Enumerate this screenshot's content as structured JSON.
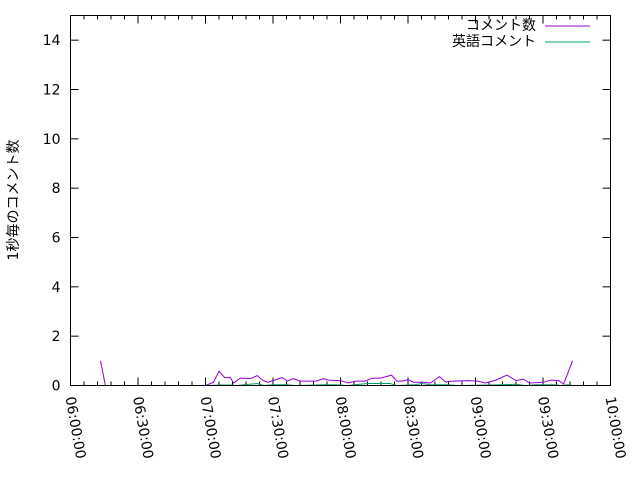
{
  "chart_data": {
    "type": "line",
    "title": "",
    "xlabel": "",
    "ylabel": "1秒毎のコメント数",
    "xlim": [
      "06:00:00",
      "10:00:00"
    ],
    "ylim": [
      0,
      15
    ],
    "x_ticks": [
      "06:00:00",
      "06:30:00",
      "07:00:00",
      "07:30:00",
      "08:00:00",
      "08:30:00",
      "09:00:00",
      "09:30:00",
      "10:00:00"
    ],
    "y_ticks": [
      "0",
      "2",
      "4",
      "6",
      "8",
      "10",
      "12",
      "14"
    ],
    "x_minor_tick_minutes": 6,
    "grid": false,
    "legend_position": "top-right",
    "series": [
      {
        "name": "コメント数",
        "color": "#9400d3",
        "segments": [
          [
            [
              "06:13:20",
              1.0
            ],
            [
              "06:15:30",
              0
            ]
          ],
          [
            [
              "07:00:00",
              0
            ],
            [
              "07:03:30",
              0.13
            ],
            [
              "07:06:00",
              0.58
            ],
            [
              "07:08:30",
              0.32
            ],
            [
              "07:11:00",
              0.32
            ],
            [
              "07:12:30",
              0.1
            ],
            [
              "07:15:30",
              0.3
            ],
            [
              "07:20:00",
              0.28
            ],
            [
              "07:23:00",
              0.4
            ],
            [
              "07:25:20",
              0.22
            ],
            [
              "07:27:30",
              0.13
            ],
            [
              "07:30:00",
              0.2
            ],
            [
              "07:34:00",
              0.32
            ],
            [
              "07:36:30",
              0.18
            ],
            [
              "07:39:00",
              0.28
            ],
            [
              "07:42:00",
              0.18
            ],
            [
              "07:49:00",
              0.18
            ],
            [
              "07:52:30",
              0.28
            ],
            [
              "07:54:40",
              0.22
            ],
            [
              "08:00:00",
              0.2
            ],
            [
              "08:03:30",
              0.1
            ],
            [
              "08:06:40",
              0.18
            ],
            [
              "08:11:00",
              0.18
            ],
            [
              "08:14:10",
              0.3
            ],
            [
              "08:17:50",
              0.3
            ],
            [
              "08:22:40",
              0.42
            ],
            [
              "08:25:00",
              0.18
            ],
            [
              "08:27:30",
              0.18
            ],
            [
              "08:30:00",
              0.24
            ],
            [
              "08:32:30",
              0.13
            ],
            [
              "08:36:30",
              0.13
            ],
            [
              "08:40:00",
              0.1
            ],
            [
              "08:44:00",
              0.36
            ],
            [
              "08:46:40",
              0.14
            ],
            [
              "08:50:10",
              0.18
            ],
            [
              "08:56:30",
              0.2
            ],
            [
              "09:01:00",
              0.18
            ],
            [
              "09:04:30",
              0.1
            ],
            [
              "09:09:00",
              0.22
            ],
            [
              "09:14:00",
              0.42
            ],
            [
              "09:18:00",
              0.2
            ],
            [
              "09:21:20",
              0.26
            ],
            [
              "09:24:00",
              0.1
            ],
            [
              "09:30:10",
              0.13
            ],
            [
              "09:33:20",
              0.22
            ],
            [
              "09:37:00",
              0.2
            ],
            [
              "09:39:10",
              0.06
            ],
            [
              "09:43:10",
              1.0
            ]
          ]
        ]
      },
      {
        "name": "英語コメント",
        "color": "#009e73",
        "segments": [
          [
            [
              "07:00:00",
              0
            ],
            [
              "07:07:00",
              0.02
            ],
            [
              "07:11:00",
              0.02
            ],
            [
              "07:14:00",
              0
            ],
            [
              "07:17:00",
              0.03
            ],
            [
              "07:23:00",
              0.08
            ],
            [
              "07:26:00",
              0
            ],
            [
              "07:30:00",
              0.03
            ],
            [
              "07:36:00",
              0.03
            ],
            [
              "07:40:00",
              0
            ],
            [
              "07:53:00",
              0.03
            ],
            [
              "07:58:00",
              0.03
            ],
            [
              "08:03:00",
              0
            ],
            [
              "08:12:00",
              0.08
            ],
            [
              "08:22:00",
              0.08
            ],
            [
              "08:25:00",
              0
            ],
            [
              "08:33:00",
              0.03
            ],
            [
              "08:36:00",
              0.08
            ],
            [
              "08:40:00",
              0.03
            ],
            [
              "08:48:00",
              0.03
            ],
            [
              "08:52:00",
              0
            ],
            [
              "09:12:00",
              0.03
            ],
            [
              "09:18:00",
              0.05
            ],
            [
              "09:22:00",
              0
            ],
            [
              "09:27:00",
              0.03
            ],
            [
              "09:35:00",
              0.03
            ],
            [
              "09:38:00",
              0
            ],
            [
              "09:41:00",
              0.03
            ],
            [
              "09:43:10",
              0
            ]
          ]
        ]
      }
    ]
  }
}
